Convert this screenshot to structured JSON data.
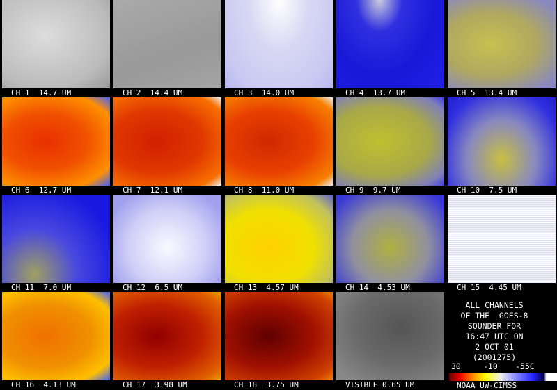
{
  "panels": [
    {
      "label": "CH 1  14.7 UM"
    },
    {
      "label": "CH 2  14.4 UM"
    },
    {
      "label": "CH 3  14.0 UM"
    },
    {
      "label": "CH 4  13.7 UM"
    },
    {
      "label": "CH 5  13.4 UM"
    },
    {
      "label": "CH 6  12.7 UM"
    },
    {
      "label": "CH 7  12.1 UM"
    },
    {
      "label": "CH 8  11.0 UM"
    },
    {
      "label": "CH 9  9.7 UM"
    },
    {
      "label": "CH 10  7.5 UM"
    },
    {
      "label": "CH 11  7.0 UM"
    },
    {
      "label": "CH 12  6.5 UM"
    },
    {
      "label": "CH 13  4.57 UM"
    },
    {
      "label": "CH 14  4.53 UM"
    },
    {
      "label": "CH 15  4.45 UM"
    },
    {
      "label": "CH 16  4.13 UM"
    },
    {
      "label": "CH 17  3.98 UM"
    },
    {
      "label": "CH 18  3.75 UM"
    },
    {
      "label": "VISIBLE 0.65 UM"
    }
  ],
  "info": {
    "lines": [
      "ALL CHANNELS",
      "OF THE  GOES-8",
      "SOUNDER FOR",
      "16:47 UTC ON",
      "2 OCT 01",
      "(2001275)"
    ],
    "scale_labels": [
      "30",
      "-10",
      "-55C"
    ],
    "credit": "NOAA UW-CIMSS"
  }
}
